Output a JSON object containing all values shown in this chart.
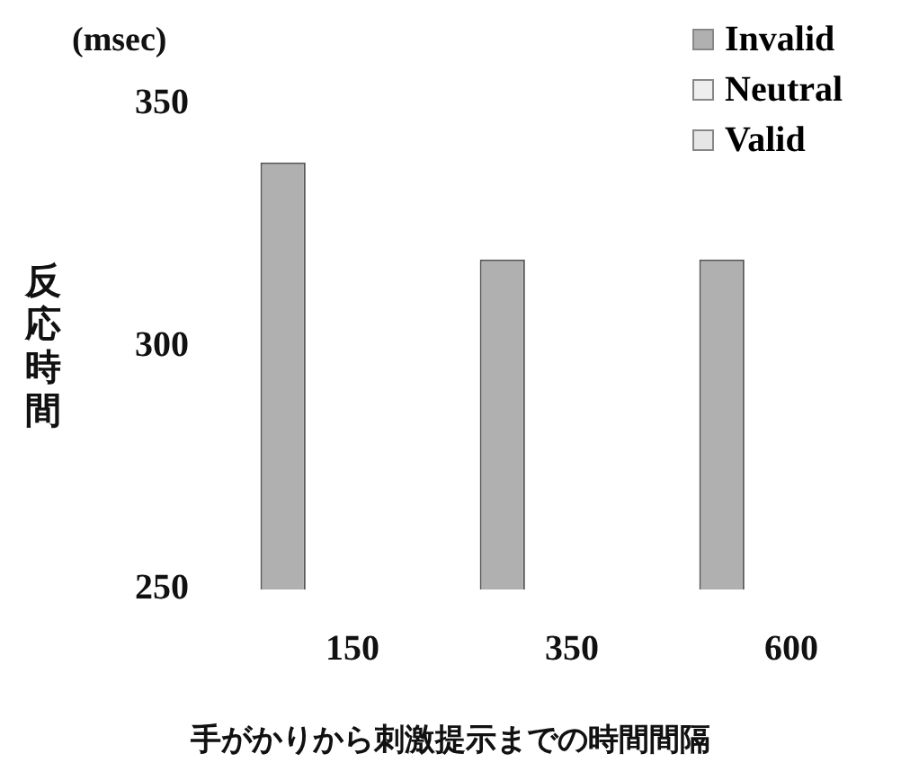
{
  "chart_data": {
    "type": "bar",
    "ylabel": "反応時間",
    "xlabel": "手がかりから刺激提示までの時間間隔",
    "annotations": [
      "(msec)"
    ],
    "categories": [
      "150",
      "350",
      "600"
    ],
    "series": [
      {
        "name": "Invalid",
        "color": "#b0b0b0",
        "values": [
          338,
          318,
          318
        ]
      },
      {
        "name": "Neutral",
        "color": "#eeeeee",
        "values": [
          null,
          null,
          null
        ]
      },
      {
        "name": "Valid",
        "color": "#e6e6e6",
        "values": [
          null,
          null,
          null
        ]
      }
    ],
    "ylim": [
      250,
      350
    ],
    "yticks": [
      250,
      300,
      350
    ],
    "grid": false,
    "legend": "top right"
  }
}
